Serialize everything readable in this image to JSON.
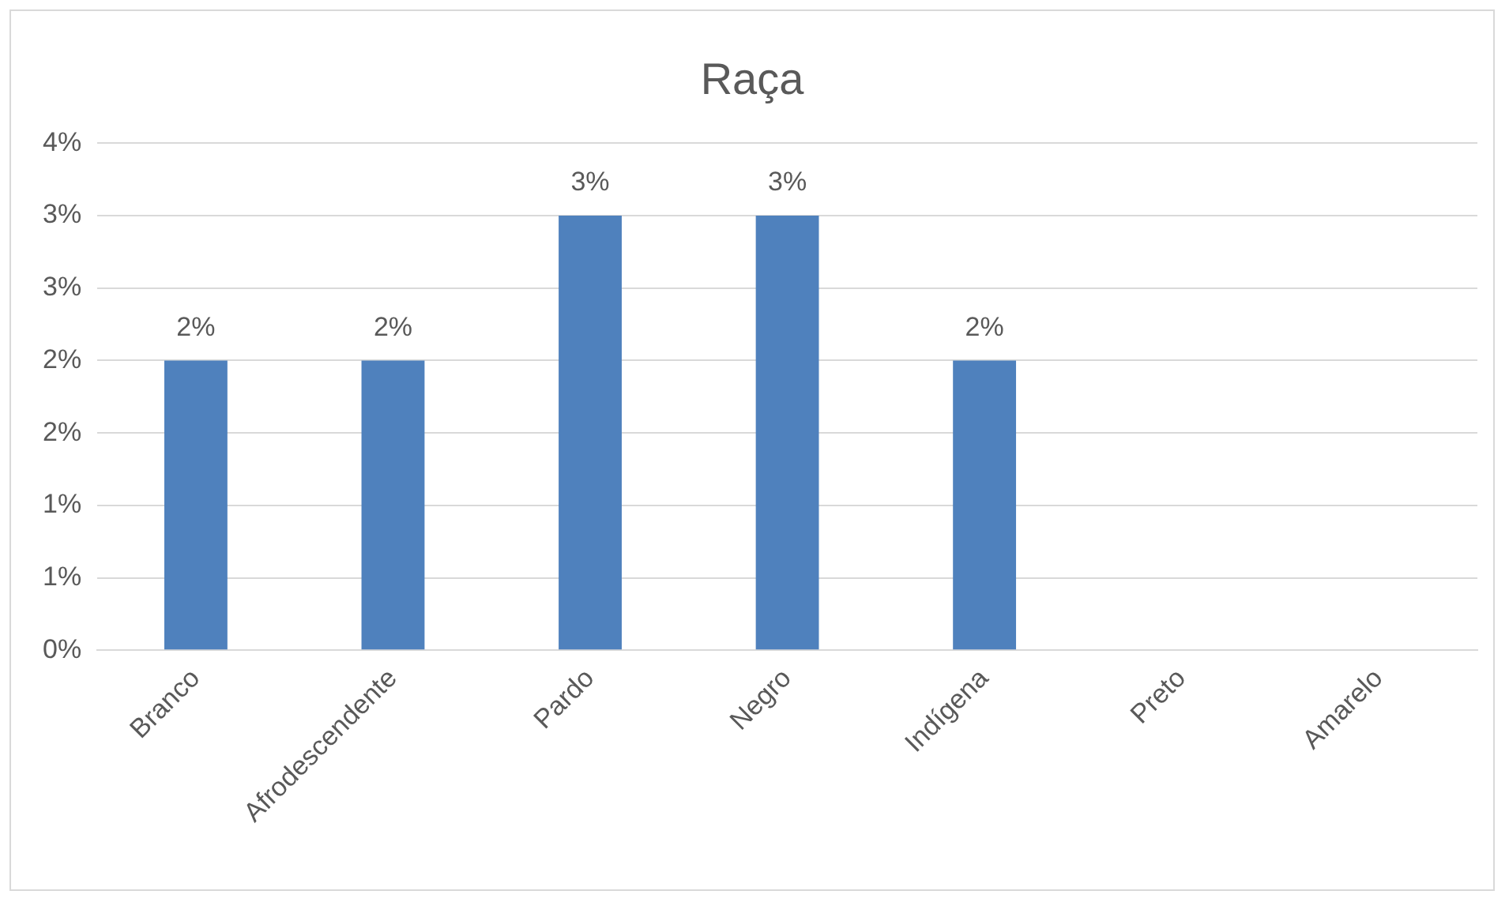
{
  "chart_data": {
    "type": "bar",
    "title": "Raça",
    "categories": [
      "Branco",
      "Afrodescendente",
      "Pardo",
      "Negro",
      "Indígena",
      "Preto",
      "Amarelo"
    ],
    "values": [
      2,
      2,
      3,
      3,
      2,
      null,
      null
    ],
    "value_labels": [
      "2%",
      "2%",
      "3%",
      "3%",
      "2%",
      null,
      null
    ],
    "color": "#4f81bd",
    "ylim": [
      0,
      3.5
    ],
    "yticks": [
      {
        "value": 0,
        "label": "0%"
      },
      {
        "value": 0.5,
        "label": "1%"
      },
      {
        "value": 1,
        "label": "1%"
      },
      {
        "value": 1.5,
        "label": "2%"
      },
      {
        "value": 2,
        "label": "2%"
      },
      {
        "value": 2.5,
        "label": "3%"
      },
      {
        "value": 3,
        "label": "3%"
      },
      {
        "value": 3.5,
        "label": "4%"
      }
    ],
    "grid": "y"
  }
}
